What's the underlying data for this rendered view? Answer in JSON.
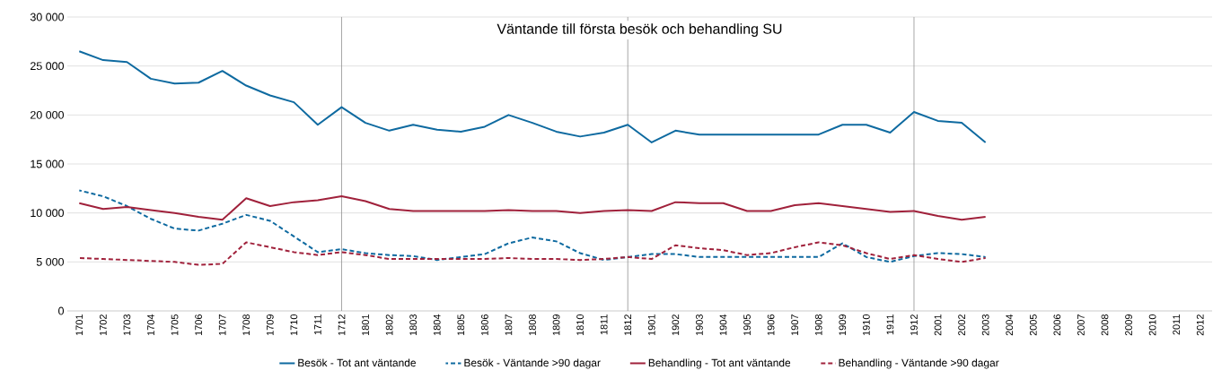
{
  "chart_data": {
    "type": "line",
    "title": "Väntande till första besök och behandling SU",
    "categories": [
      "1701",
      "1702",
      "1703",
      "1704",
      "1705",
      "1706",
      "1707",
      "1708",
      "1709",
      "1710",
      "1711",
      "1712",
      "1801",
      "1802",
      "1803",
      "1804",
      "1805",
      "1806",
      "1807",
      "1808",
      "1809",
      "1810",
      "1811",
      "1812",
      "1901",
      "1902",
      "1903",
      "1904",
      "1905",
      "1906",
      "1907",
      "1908",
      "1909",
      "1910",
      "1911",
      "1912",
      "2001",
      "2002",
      "2003",
      "2004",
      "2005",
      "2006",
      "2007",
      "2008",
      "2009",
      "2010",
      "2011",
      "2012"
    ],
    "series": [
      {
        "name": "Besök - Tot ant väntande",
        "color": "#0e6aa0",
        "line_style": "solid",
        "values": [
          26500,
          25600,
          25400,
          23700,
          23200,
          23300,
          24500,
          23000,
          22000,
          21300,
          19000,
          20800,
          19200,
          18400,
          19000,
          18500,
          18300,
          18800,
          20000,
          19200,
          18300,
          17800,
          18200,
          19000,
          17200,
          18400,
          18000,
          18000,
          18000,
          18000,
          18000,
          18000,
          19000,
          19000,
          18200,
          20300,
          19400,
          19200,
          17200,
          null,
          null,
          null,
          null,
          null,
          null,
          null,
          null,
          null
        ]
      },
      {
        "name": "Besök - Väntande >90 dagar",
        "color": "#0e6aa0",
        "line_style": "dashed",
        "values": [
          12300,
          11700,
          10700,
          9400,
          8400,
          8200,
          8900,
          9800,
          9200,
          7600,
          6000,
          6300,
          5900,
          5700,
          5600,
          5200,
          5500,
          5800,
          6900,
          7500,
          7100,
          5900,
          5200,
          5500,
          5800,
          5800,
          5500,
          5500,
          5500,
          5500,
          5500,
          5500,
          6900,
          5500,
          5000,
          5600,
          5900,
          5800,
          5500,
          null,
          null,
          null,
          null,
          null,
          null,
          null,
          null,
          null
        ]
      },
      {
        "name": "Behandling - Tot ant väntande",
        "color": "#a0213b",
        "line_style": "solid",
        "values": [
          11000,
          10400,
          10600,
          10300,
          10000,
          9600,
          9300,
          11500,
          10700,
          11100,
          11300,
          11700,
          11200,
          10400,
          10200,
          10200,
          10200,
          10200,
          10300,
          10200,
          10200,
          10000,
          10200,
          10300,
          10200,
          11100,
          11000,
          11000,
          10200,
          10200,
          10800,
          11000,
          10700,
          10400,
          10100,
          10200,
          9700,
          9300,
          9600,
          null,
          null,
          null,
          null,
          null,
          null,
          null,
          null,
          null
        ]
      },
      {
        "name": "Behandling - Väntande >90 dagar",
        "color": "#a0213b",
        "line_style": "dashed",
        "values": [
          5400,
          5300,
          5200,
          5100,
          5000,
          4700,
          4800,
          7000,
          6500,
          6000,
          5700,
          6000,
          5700,
          5300,
          5300,
          5300,
          5300,
          5300,
          5400,
          5300,
          5300,
          5200,
          5300,
          5500,
          5300,
          6700,
          6400,
          6200,
          5700,
          5900,
          6500,
          7000,
          6700,
          5900,
          5300,
          5700,
          5300,
          5000,
          5400,
          null,
          null,
          null,
          null,
          null,
          null,
          null,
          null,
          null
        ]
      }
    ],
    "ylim": [
      0,
      30000
    ],
    "yticks": [
      0,
      {
        "value": 5000,
        "label": "5 000"
      },
      {
        "value": 10000,
        "label": "10 000"
      },
      {
        "value": 15000,
        "label": "15 000"
      },
      {
        "value": 20000,
        "label": "20 000"
      },
      {
        "value": 25000,
        "label": "25 000"
      },
      {
        "value": 30000,
        "label": "30 000"
      }
    ],
    "grid": "y",
    "legend": "bottom",
    "marker": "none",
    "ref_lines": [
      {
        "axis": "x",
        "value": "1712",
        "color": "#909090"
      },
      {
        "axis": "x",
        "value": "1812",
        "color": "#909090"
      },
      {
        "axis": "x",
        "value": "1912",
        "color": "#909090"
      }
    ]
  }
}
